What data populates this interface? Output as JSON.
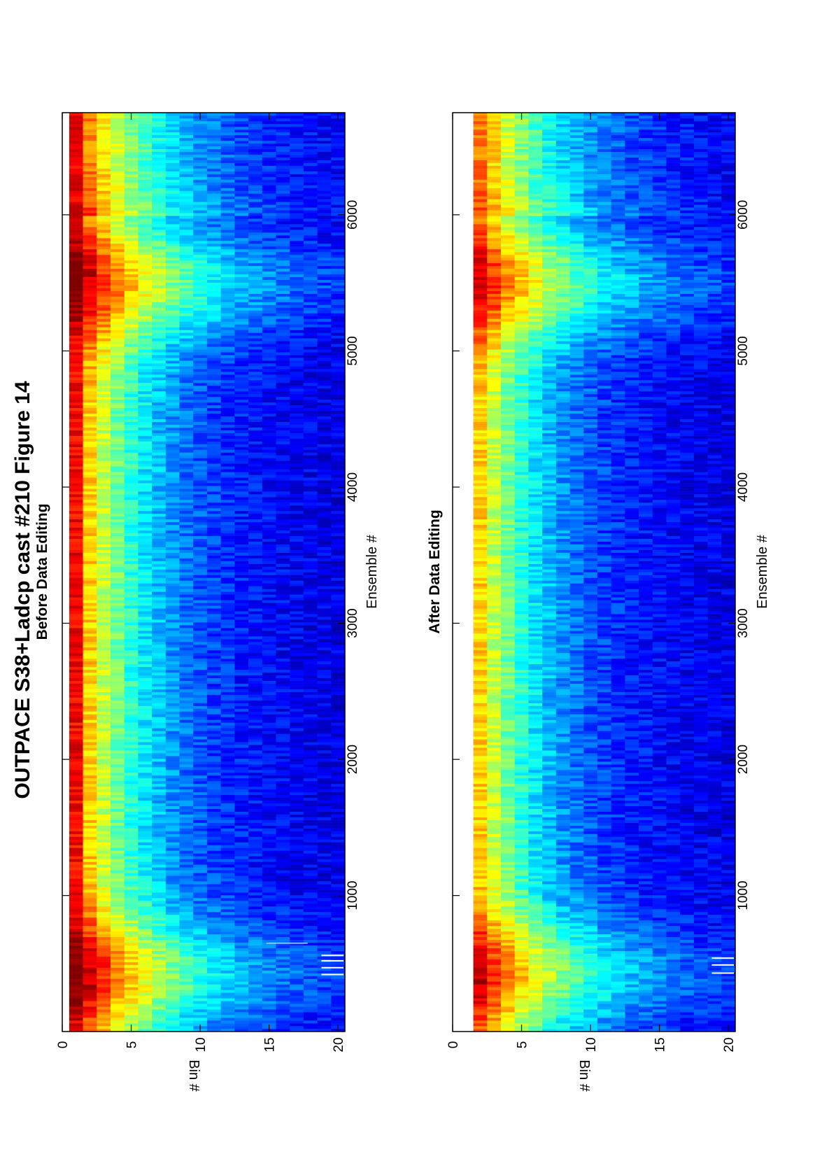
{
  "figure": {
    "title": "OUTPACE S38+Ladcp cast #210  Figure 14"
  },
  "chart_data": [
    {
      "type": "heatmap",
      "title": "Before Data Editing",
      "xlabel": "Ensemble #",
      "ylabel": "Bin #",
      "xlim": [
        1,
        6750
      ],
      "ylim": [
        0,
        20.5
      ],
      "y_reversed": true,
      "xticks": [
        1000,
        2000,
        3000,
        4000,
        5000,
        6000
      ],
      "yticks": [
        0,
        5,
        10,
        15,
        20
      ],
      "bins": [
        1,
        20
      ],
      "colormap": "jet",
      "grid": false,
      "legend": "none",
      "features": {
        "peak_ensembles": [
          420,
          5500
        ],
        "edited_out_segments": [],
        "flagged_ensembles_bin20": [
          420,
          470,
          520,
          560
        ],
        "isolated_bad_bin18": [
          650
        ]
      }
    },
    {
      "type": "heatmap",
      "title": "After Data Editing",
      "xlabel": "Ensemble #",
      "ylabel": "Bin #",
      "xlim": [
        1,
        6750
      ],
      "ylim": [
        0,
        20.5
      ],
      "y_reversed": true,
      "xticks": [
        1000,
        2000,
        3000,
        4000,
        5000,
        6000
      ],
      "yticks": [
        0,
        5,
        10,
        15,
        20
      ],
      "bins": [
        2,
        20
      ],
      "colormap": "jet",
      "grid": false,
      "legend": "none",
      "features": {
        "peak_ensembles": [
          420,
          5500
        ],
        "flagged_ensembles_bin20": [
          430,
          490,
          540
        ]
      }
    }
  ],
  "colors": {
    "axis": "#000000",
    "background": "#ffffff",
    "blank": "#ffffff"
  }
}
